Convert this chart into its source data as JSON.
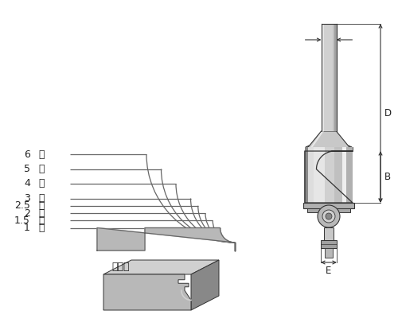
{
  "bg_color": "#ffffff",
  "line_color": "#666666",
  "dim_color": "#333333",
  "text_color": "#222222",
  "profile_labels": [
    "6",
    "5",
    "4",
    "3",
    "2.5",
    "2",
    "1.5",
    "1"
  ],
  "label_suffix": "分",
  "material_label": "被削材",
  "shank_color": "#cccccc",
  "shank_hi": "#e8e8e8",
  "shank_lo": "#999999",
  "body_color": "#bbbbbb",
  "body_hi": "#e0e0e0",
  "body_lo": "#888888",
  "bearing_color": "#aaaaaa",
  "bearing_dark": "#555555",
  "wood_color": "#b8b8b8",
  "wood_dark": "#888888",
  "wood_light": "#d0d0d0"
}
